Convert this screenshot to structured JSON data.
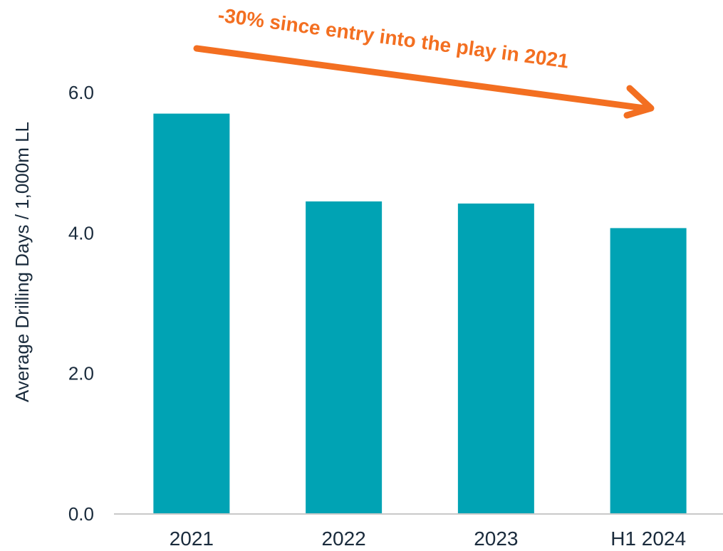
{
  "chart_data": {
    "type": "bar",
    "categories": [
      "2021",
      "2022",
      "2023",
      "H1 2024"
    ],
    "values": [
      5.7,
      4.45,
      4.42,
      4.07
    ],
    "title": "",
    "xlabel": "",
    "ylabel": "Average Drilling Days / 1,000m LL",
    "ylim": [
      0,
      6
    ],
    "yticks": [
      "0.0",
      "2.0",
      "4.0",
      "6.0"
    ],
    "grid": false,
    "bar_color": "#00A3B4",
    "annotation": {
      "text": "-30% since entry into the play in 2021",
      "color": "#F36F21"
    }
  }
}
